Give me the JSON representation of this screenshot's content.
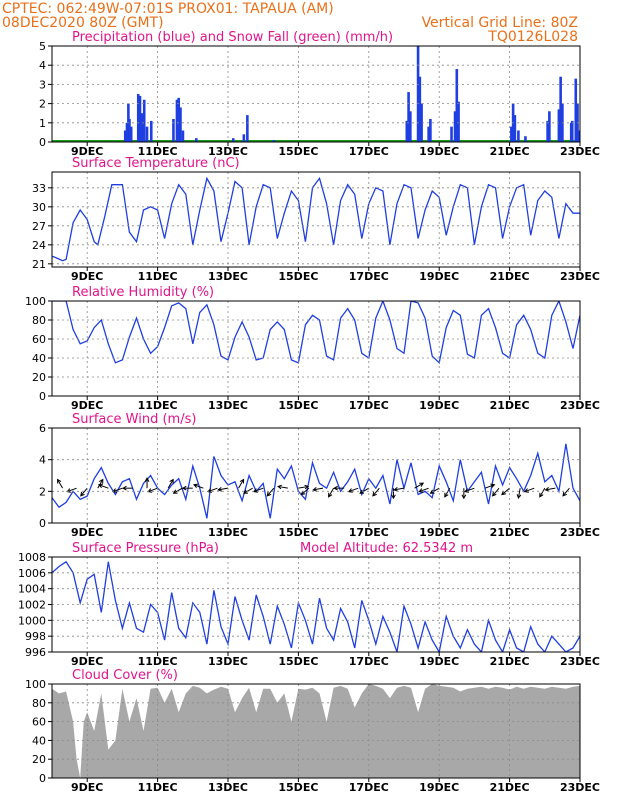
{
  "header": {
    "line1": "CPTEC:   062:49W-07:01S   PROX01: TAPAUA (AM)",
    "date": "08DEC2020 80Z (GMT)",
    "grid_note": "Vertical Grid Line: 80Z",
    "code": "TQ0126L028"
  },
  "colors": {
    "header_text": "#e8701a",
    "panel_title": "#e0148c",
    "line": "#1f3fe0",
    "bar_precip": "#1f3fe0",
    "snow": "#1a9a1a",
    "cloud_fill": "#a8a8a8"
  },
  "panels": {
    "precip": {
      "title": "Precipitation (blue) and Snow Fall (green) (mm/h)"
    },
    "temp": {
      "title": "Surface Temperature (nC)"
    },
    "rh": {
      "title": "Relative Humidity (%)"
    },
    "wind": {
      "title": "Surface Wind (m/s)"
    },
    "pressure": {
      "title": "Surface Pressure (hPa)",
      "altitude": "Model Altitude: 62.5342 m"
    },
    "cloud": {
      "title": "Cloud Cover (%)"
    }
  },
  "chart_data": [
    {
      "id": "precip",
      "type": "bar",
      "title": "Precipitation (blue) and Snow Fall (green) (mm/h)",
      "xlim": [
        0,
        15
      ],
      "x_ticks": [
        1,
        3,
        5,
        7,
        9,
        11,
        13,
        15
      ],
      "x_tick_labels": [
        "9DEC",
        "11DEC",
        "13DEC",
        "15DEC",
        "17DEC",
        "19DEC",
        "21DEC",
        "23DEC"
      ],
      "ylim": [
        0,
        5
      ],
      "y_ticks": [
        0,
        1,
        2,
        3,
        4,
        5
      ],
      "bars": [
        [
          2.08,
          0.6
        ],
        [
          2.13,
          1.0
        ],
        [
          2.17,
          2.0
        ],
        [
          2.2,
          1.2
        ],
        [
          2.25,
          0.8
        ],
        [
          2.45,
          2.5
        ],
        [
          2.5,
          2.4
        ],
        [
          2.55,
          1.5
        ],
        [
          2.62,
          2.2
        ],
        [
          2.7,
          0.8
        ],
        [
          2.82,
          1.1
        ],
        [
          3.45,
          1.2
        ],
        [
          3.55,
          2.2
        ],
        [
          3.6,
          2.3
        ],
        [
          3.65,
          1.8
        ],
        [
          3.72,
          0.6
        ],
        [
          4.1,
          0.2
        ],
        [
          5.15,
          0.2
        ],
        [
          5.45,
          0.4
        ],
        [
          5.55,
          1.4
        ],
        [
          6.3,
          0.1
        ],
        [
          10.08,
          1.1
        ],
        [
          10.13,
          2.6
        ],
        [
          10.18,
          1.6
        ],
        [
          10.4,
          5.0
        ],
        [
          10.45,
          3.4
        ],
        [
          10.5,
          2.0
        ],
        [
          10.7,
          0.8
        ],
        [
          10.75,
          1.2
        ],
        [
          11.35,
          0.8
        ],
        [
          11.45,
          1.6
        ],
        [
          11.5,
          3.8
        ],
        [
          11.55,
          2.1
        ],
        [
          13.05,
          0.8
        ],
        [
          13.1,
          2.0
        ],
        [
          13.15,
          1.4
        ],
        [
          13.25,
          0.6
        ],
        [
          13.45,
          0.3
        ],
        [
          14.08,
          1.1
        ],
        [
          14.13,
          1.6
        ],
        [
          14.4,
          1.7
        ],
        [
          14.45,
          3.4
        ],
        [
          14.5,
          2.0
        ],
        [
          14.75,
          1.0
        ],
        [
          14.78,
          1.1
        ],
        [
          14.88,
          3.3
        ],
        [
          14.93,
          2.0
        ],
        [
          14.98,
          0.6
        ]
      ]
    },
    {
      "id": "temp",
      "type": "line",
      "title": "Surface Temperature (nC)",
      "xlim": [
        0,
        15
      ],
      "ylim": [
        20.5,
        35.5
      ],
      "y_ticks": [
        21,
        24,
        27,
        30,
        33
      ],
      "x": [
        0,
        0.1,
        0.3,
        0.4,
        0.6,
        0.8,
        1.0,
        1.2,
        1.3,
        1.5,
        1.7,
        2.0,
        2.2,
        2.4,
        2.6,
        2.8,
        3.0,
        3.2,
        3.4,
        3.6,
        3.8,
        4.0,
        4.2,
        4.4,
        4.6,
        4.8,
        5.0,
        5.2,
        5.4,
        5.6,
        5.8,
        6.0,
        6.2,
        6.4,
        6.6,
        6.8,
        7.0,
        7.2,
        7.4,
        7.6,
        7.8,
        8.0,
        8.2,
        8.4,
        8.6,
        8.8,
        9.0,
        9.2,
        9.4,
        9.6,
        9.8,
        10.0,
        10.2,
        10.4,
        10.6,
        10.8,
        11.0,
        11.2,
        11.4,
        11.6,
        11.8,
        12.0,
        12.2,
        12.4,
        12.6,
        12.8,
        13.0,
        13.2,
        13.4,
        13.6,
        13.8,
        14.0,
        14.2,
        14.4,
        14.6,
        14.8,
        15.0
      ],
      "values": [
        22.2,
        22.0,
        21.5,
        21.7,
        27.5,
        29.5,
        28.0,
        24.5,
        24.0,
        28.5,
        33.5,
        33.5,
        26.0,
        24.5,
        29.5,
        30.0,
        29.5,
        25.0,
        30.5,
        33.5,
        32.0,
        24.0,
        29.5,
        34.5,
        32.5,
        24.5,
        29.0,
        34.0,
        33.0,
        24.0,
        30.0,
        33.5,
        33.0,
        25.0,
        29.0,
        32.5,
        31.0,
        24.5,
        33.0,
        34.5,
        30.5,
        24.0,
        31.0,
        33.5,
        32.0,
        25.0,
        30.5,
        33.0,
        32.5,
        24.0,
        30.5,
        33.5,
        33.0,
        25.0,
        29.5,
        32.5,
        31.5,
        25.5,
        30.0,
        33.5,
        33.0,
        24.0,
        30.0,
        33.5,
        33.0,
        25.0,
        30.0,
        33.0,
        33.5,
        25.5,
        31.0,
        32.5,
        31.5,
        25.0,
        30.5,
        29.0,
        29.0
      ]
    },
    {
      "id": "rh",
      "type": "line",
      "title": "Relative Humidity (%)",
      "xlim": [
        0,
        15
      ],
      "ylim": [
        0,
        100
      ],
      "y_ticks": [
        0,
        20,
        40,
        60,
        80,
        100
      ],
      "x": [
        0,
        0.2,
        0.4,
        0.6,
        0.8,
        1.0,
        1.2,
        1.4,
        1.6,
        1.8,
        2.0,
        2.2,
        2.4,
        2.6,
        2.8,
        3.0,
        3.2,
        3.4,
        3.6,
        3.8,
        4.0,
        4.2,
        4.4,
        4.6,
        4.8,
        5.0,
        5.2,
        5.4,
        5.6,
        5.8,
        6.0,
        6.2,
        6.4,
        6.6,
        6.8,
        7.0,
        7.2,
        7.4,
        7.6,
        7.8,
        8.0,
        8.2,
        8.4,
        8.6,
        8.8,
        9.0,
        9.2,
        9.4,
        9.6,
        9.8,
        10.0,
        10.2,
        10.4,
        10.6,
        10.8,
        11.0,
        11.2,
        11.4,
        11.6,
        11.8,
        12.0,
        12.2,
        12.4,
        12.6,
        12.8,
        13.0,
        13.2,
        13.4,
        13.6,
        13.8,
        14.0,
        14.2,
        14.4,
        14.6,
        14.8,
        15.0
      ],
      "values": [
        100,
        100,
        100,
        70,
        55,
        58,
        72,
        80,
        55,
        35,
        38,
        62,
        82,
        60,
        45,
        52,
        72,
        95,
        98,
        92,
        55,
        88,
        96,
        75,
        42,
        38,
        62,
        78,
        62,
        38,
        40,
        70,
        78,
        70,
        38,
        35,
        75,
        85,
        80,
        42,
        38,
        82,
        92,
        80,
        45,
        40,
        82,
        100,
        80,
        50,
        45,
        100,
        98,
        82,
        42,
        35,
        72,
        90,
        85,
        44,
        40,
        85,
        92,
        72,
        45,
        40,
        75,
        85,
        70,
        45,
        40,
        85,
        100,
        78,
        50,
        85
      ]
    },
    {
      "id": "wind",
      "type": "line",
      "title": "Surface Wind (m/s)",
      "xlim": [
        0,
        15
      ],
      "ylim": [
        0,
        6
      ],
      "y_ticks": [
        0,
        2,
        4,
        6
      ],
      "x": [
        0,
        0.2,
        0.4,
        0.6,
        0.8,
        1.0,
        1.2,
        1.4,
        1.6,
        1.8,
        2.0,
        2.2,
        2.4,
        2.6,
        2.8,
        3.0,
        3.2,
        3.4,
        3.6,
        3.8,
        4.0,
        4.2,
        4.4,
        4.6,
        4.8,
        5.0,
        5.2,
        5.4,
        5.6,
        5.8,
        6.0,
        6.2,
        6.4,
        6.6,
        6.8,
        7.0,
        7.2,
        7.4,
        7.6,
        7.8,
        8.0,
        8.2,
        8.4,
        8.6,
        8.8,
        9.0,
        9.2,
        9.4,
        9.6,
        9.8,
        10.0,
        10.2,
        10.4,
        10.6,
        10.8,
        11.0,
        11.2,
        11.4,
        11.6,
        11.8,
        12.0,
        12.2,
        12.4,
        12.6,
        12.8,
        13.0,
        13.2,
        13.4,
        13.6,
        13.8,
        14.0,
        14.2,
        14.4,
        14.6,
        14.8,
        15.0
      ],
      "values": [
        1.6,
        1.0,
        1.3,
        2.0,
        1.5,
        1.7,
        2.8,
        3.5,
        2.5,
        1.8,
        2.6,
        2.8,
        1.5,
        2.5,
        3.0,
        2.2,
        1.8,
        2.4,
        2.8,
        1.5,
        3.6,
        2.2,
        0.3,
        4.2,
        3.0,
        2.4,
        2.6,
        1.4,
        3.0,
        2.0,
        2.5,
        0.3,
        3.4,
        2.8,
        3.6,
        2.0,
        1.5,
        3.8,
        2.5,
        2.2,
        3.2,
        2.0,
        2.6,
        3.4,
        1.8,
        2.8,
        2.2,
        3.0,
        1.2,
        4.0,
        2.2,
        3.8,
        1.8,
        2.0,
        1.6,
        3.6,
        2.6,
        1.4,
        4.0,
        2.0,
        2.6,
        3.2,
        1.2,
        3.6,
        2.4,
        3.5,
        2.8,
        2.0,
        3.0,
        4.4,
        2.6,
        3.0,
        2.0,
        5.0,
        2.2,
        1.4
      ],
      "arrow_x": [
        0.3,
        0.7,
        1.0,
        1.3,
        1.6,
        2.0,
        2.3,
        2.7,
        3.0,
        3.3,
        3.7,
        4.0,
        4.3,
        4.7,
        5.0,
        5.3,
        5.7,
        6.0,
        6.3,
        6.7,
        7.0,
        7.3,
        7.7,
        8.0,
        8.3,
        8.7,
        9.0,
        9.3,
        9.7,
        10.0,
        10.3,
        10.7,
        11.0,
        11.3,
        11.7,
        12.0,
        12.3,
        12.7,
        13.0,
        13.3,
        13.7,
        14.0,
        14.3,
        14.7,
        15.0
      ],
      "arrow_angle_deg": [
        120,
        200,
        230,
        60,
        160,
        200,
        180,
        90,
        200,
        60,
        210,
        180,
        160,
        200,
        190,
        60,
        210,
        200,
        230,
        170,
        10,
        220,
        190,
        240,
        180,
        200,
        210,
        230,
        270,
        190,
        30,
        200,
        210,
        240,
        270,
        200,
        20,
        230,
        220,
        260,
        200,
        240,
        190,
        230,
        300
      ]
    },
    {
      "id": "pressure",
      "type": "line",
      "title": "Surface Pressure (hPa)",
      "xlim": [
        0,
        15
      ],
      "ylim": [
        996,
        1008
      ],
      "y_ticks": [
        996,
        998,
        1000,
        1002,
        1004,
        1006,
        1008
      ],
      "x": [
        0,
        0.2,
        0.4,
        0.6,
        0.8,
        1.0,
        1.2,
        1.4,
        1.6,
        1.8,
        2.0,
        2.2,
        2.4,
        2.6,
        2.8,
        3.0,
        3.2,
        3.4,
        3.6,
        3.8,
        4.0,
        4.2,
        4.4,
        4.6,
        4.8,
        5.0,
        5.2,
        5.4,
        5.6,
        5.8,
        6.0,
        6.2,
        6.4,
        6.6,
        6.8,
        7.0,
        7.2,
        7.4,
        7.6,
        7.8,
        8.0,
        8.2,
        8.4,
        8.6,
        8.8,
        9.0,
        9.2,
        9.4,
        9.6,
        9.8,
        10.0,
        10.2,
        10.4,
        10.6,
        10.8,
        11.0,
        11.2,
        11.4,
        11.6,
        11.8,
        12.0,
        12.2,
        12.4,
        12.6,
        12.8,
        13.0,
        13.2,
        13.4,
        13.6,
        13.8,
        14.0,
        14.2,
        14.4,
        14.6,
        14.8,
        15.0
      ],
      "values": [
        1006.0,
        1006.8,
        1007.4,
        1006.0,
        1002.2,
        1005.2,
        1005.8,
        1001.0,
        1007.4,
        1002.5,
        999.0,
        1002.2,
        999.0,
        998.5,
        1002.0,
        1001.0,
        997.5,
        1003.5,
        999.0,
        997.8,
        1002.2,
        1001.0,
        997.0,
        1003.8,
        999.2,
        997.0,
        1003.0,
        1000.0,
        997.5,
        1003.2,
        1000.5,
        997.0,
        1001.8,
        999.5,
        996.5,
        1002.2,
        1000.0,
        997.0,
        1002.8,
        999.0,
        997.5,
        1001.5,
        999.8,
        996.5,
        1002.5,
        1000.0,
        997.0,
        1000.5,
        998.5,
        996.0,
        1001.8,
        999.5,
        996.5,
        999.8,
        997.5,
        996.0,
        1000.5,
        998.0,
        996.5,
        998.8,
        997.0,
        996.0,
        1000.0,
        997.5,
        996.0,
        998.8,
        996.5,
        996.0,
        999.2,
        997.0,
        996.0,
        998.0,
        997.0,
        996.0,
        996.5,
        998.0
      ]
    },
    {
      "id": "cloud",
      "type": "area",
      "title": "Cloud Cover (%)",
      "xlim": [
        0,
        15
      ],
      "ylim": [
        0,
        100
      ],
      "y_ticks": [
        0,
        20,
        40,
        60,
        80,
        100
      ],
      "x": [
        0,
        0.2,
        0.4,
        0.6,
        0.7,
        0.8,
        0.9,
        1.0,
        1.2,
        1.4,
        1.6,
        1.8,
        2.0,
        2.2,
        2.4,
        2.6,
        2.8,
        3.0,
        3.2,
        3.4,
        3.6,
        3.8,
        4.0,
        4.2,
        4.4,
        4.6,
        4.8,
        5.0,
        5.2,
        5.4,
        5.6,
        5.8,
        6.0,
        6.2,
        6.4,
        6.6,
        6.8,
        7.0,
        7.2,
        7.4,
        7.6,
        7.8,
        8.0,
        8.2,
        8.4,
        8.6,
        8.8,
        9.0,
        9.2,
        9.4,
        9.6,
        9.8,
        10.0,
        10.2,
        10.4,
        10.6,
        10.8,
        11.0,
        11.2,
        11.4,
        11.6,
        11.8,
        12.0,
        12.2,
        12.4,
        12.6,
        12.8,
        13.0,
        13.2,
        13.4,
        13.6,
        13.8,
        14.0,
        14.2,
        14.4,
        14.6,
        14.8,
        15.0
      ],
      "values": [
        95,
        90,
        92,
        60,
        20,
        0,
        60,
        70,
        50,
        90,
        30,
        40,
        95,
        60,
        85,
        50,
        95,
        96,
        80,
        95,
        70,
        90,
        98,
        96,
        90,
        94,
        97,
        95,
        70,
        85,
        96,
        70,
        95,
        95,
        80,
        90,
        60,
        95,
        94,
        96,
        90,
        60,
        96,
        98,
        95,
        75,
        90,
        100,
        98,
        95,
        85,
        96,
        98,
        96,
        70,
        95,
        100,
        98,
        97,
        96,
        92,
        95,
        96,
        97,
        95,
        97,
        96,
        94,
        97,
        95,
        97,
        96,
        95,
        97,
        96,
        95,
        97,
        98
      ]
    }
  ]
}
